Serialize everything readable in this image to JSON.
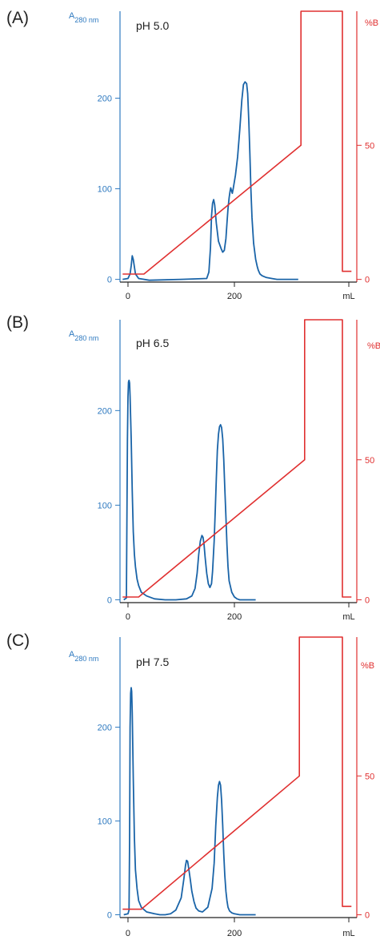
{
  "colors": {
    "absorbance": "#2f7ac0",
    "trace": "#1a64a8",
    "gradient": "#e03030",
    "axis_x": "#222222",
    "text": "#222222"
  },
  "chart_data": [
    {
      "type": "line",
      "panel_label": "(A)",
      "condition": "pH 5.0",
      "ylabel_left": "A",
      "ylabel_left_sub": "280 nm",
      "ylabel_right": "%B",
      "xlabel": "mL",
      "x_ticks": [
        0,
        200
      ],
      "y_left_ticks": [
        0,
        100,
        200
      ],
      "y_right_ticks": [
        0,
        50
      ],
      "xlim": [
        -15,
        430
      ],
      "ylim_left": [
        -3,
        296
      ],
      "ylim_right": [
        -1,
        100
      ],
      "series": [
        {
          "axis": "left",
          "x": [
            -10,
            0,
            4,
            6,
            8,
            10,
            14,
            20,
            40,
            100,
            148,
            152,
            155,
            157,
            159,
            161,
            163,
            166,
            170,
            175,
            178,
            181,
            184,
            186,
            188,
            190,
            192,
            193,
            194,
            196,
            198,
            202,
            206,
            210,
            214,
            217,
            220,
            223,
            225,
            227,
            229,
            231,
            233,
            236,
            240,
            243,
            245,
            248,
            252,
            260,
            270,
            280,
            300,
            320
          ],
          "y": [
            0,
            1,
            6,
            15,
            26,
            22,
            6,
            1,
            -1,
            0,
            1,
            8,
            35,
            70,
            84,
            88,
            82,
            62,
            42,
            34,
            30,
            32,
            45,
            62,
            78,
            90,
            98,
            101,
            99,
            95,
            101,
            115,
            135,
            165,
            198,
            215,
            218,
            216,
            205,
            175,
            140,
            100,
            68,
            40,
            22,
            14,
            10,
            6,
            4,
            2,
            1,
            0,
            0,
            0
          ]
        },
        {
          "axis": "right",
          "x": [
            -10,
            30,
            325,
            325,
            403,
            403,
            420
          ],
          "y": [
            2,
            2,
            50,
            100,
            100,
            3,
            3
          ]
        }
      ]
    },
    {
      "type": "line",
      "panel_label": "(B)",
      "condition": "pH 6.5",
      "ylabel_left": "A",
      "ylabel_left_sub": "280 nm",
      "ylabel_right": "%B",
      "xlabel": "mL",
      "x_ticks": [
        0,
        200
      ],
      "y_left_ticks": [
        0,
        100,
        200
      ],
      "y_right_ticks": [
        0,
        50
      ],
      "xlim": [
        -15,
        430
      ],
      "ylim_left": [
        -3,
        296
      ],
      "ylim_right": [
        -1,
        100
      ],
      "series": [
        {
          "axis": "left",
          "x": [
            -8,
            -3,
            -2,
            -1,
            0,
            1,
            2,
            3,
            4,
            6,
            8,
            10,
            12,
            14,
            17,
            20,
            25,
            35,
            50,
            70,
            90,
            110,
            120,
            126,
            130,
            133,
            136,
            139,
            141,
            143,
            145,
            148,
            151,
            154,
            157,
            159,
            162,
            164,
            166,
            168,
            170,
            172,
            174,
            176,
            178,
            180,
            182,
            184,
            186,
            188,
            190,
            195,
            200,
            205,
            210,
            230,
            240
          ],
          "y": [
            0,
            2,
            80,
            170,
            215,
            230,
            232,
            229,
            215,
            170,
            115,
            72,
            48,
            35,
            22,
            15,
            8,
            4,
            1,
            0,
            0,
            1,
            4,
            12,
            28,
            48,
            62,
            68,
            66,
            58,
            45,
            28,
            17,
            13,
            17,
            30,
            62,
            95,
            128,
            158,
            175,
            183,
            185,
            182,
            170,
            148,
            118,
            88,
            58,
            35,
            20,
            8,
            3,
            1,
            0,
            0,
            0
          ]
        },
        {
          "axis": "right",
          "x": [
            -10,
            20,
            332,
            332,
            403,
            403,
            420
          ],
          "y": [
            1,
            1,
            50,
            100,
            100,
            1,
            1
          ]
        }
      ]
    },
    {
      "type": "line",
      "panel_label": "(C)",
      "condition": "pH 7.5",
      "ylabel_left": "A",
      "ylabel_left_sub": "280 nm",
      "ylabel_right": "%B",
      "xlabel": "mL",
      "x_ticks": [
        0,
        200
      ],
      "y_left_ticks": [
        0,
        100,
        200
      ],
      "y_right_ticks": [
        0,
        50
      ],
      "xlim": [
        -15,
        430
      ],
      "ylim_left": [
        -3,
        296
      ],
      "ylim_right": [
        -1,
        100
      ],
      "series": [
        {
          "axis": "left",
          "x": [
            -8,
            0,
            2,
            3,
            4,
            5,
            6,
            7,
            8,
            10,
            12,
            14,
            17,
            20,
            25,
            35,
            50,
            60,
            70,
            80,
            90,
            100,
            105,
            108,
            110,
            112,
            114,
            117,
            120,
            124,
            128,
            133,
            140,
            150,
            158,
            162,
            165,
            168,
            170,
            172,
            174,
            176,
            178,
            180,
            182,
            184,
            186,
            188,
            191,
            195,
            200,
            210,
            220,
            240
          ],
          "y": [
            0,
            1,
            5,
            80,
            200,
            236,
            242,
            238,
            215,
            145,
            82,
            48,
            28,
            15,
            8,
            3,
            1,
            0,
            0,
            1,
            5,
            18,
            38,
            52,
            58,
            57,
            50,
            38,
            25,
            14,
            7,
            4,
            3,
            8,
            28,
            55,
            95,
            125,
            138,
            142,
            138,
            122,
            95,
            65,
            42,
            25,
            15,
            8,
            4,
            2,
            1,
            0,
            0,
            0
          ]
        },
        {
          "axis": "right",
          "x": [
            -10,
            25,
            322,
            322,
            403,
            403,
            420
          ],
          "y": [
            2,
            2,
            50,
            100,
            100,
            3,
            3
          ]
        }
      ]
    }
  ]
}
